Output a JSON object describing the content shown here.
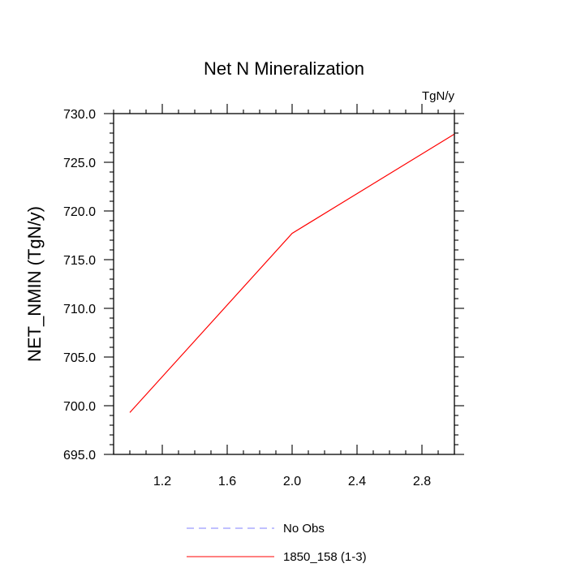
{
  "chart_data": {
    "type": "line",
    "title": "Net N Mineralization",
    "units_label": "TgN/y",
    "xlabel": "",
    "ylabel": "NET_NMIN  (TgN/y)",
    "xlim": [
      0.9,
      3.0
    ],
    "ylim": [
      695.0,
      730.0
    ],
    "x_ticks": [
      1.2,
      1.6,
      2.0,
      2.4,
      2.8
    ],
    "x_tick_labels": [
      "1.2",
      "1.6",
      "2.0",
      "2.4",
      "2.8"
    ],
    "y_ticks": [
      695,
      700,
      705,
      710,
      715,
      720,
      725,
      730
    ],
    "y_tick_labels": [
      "695.0",
      "700.0",
      "705.0",
      "710.0",
      "715.0",
      "720.0",
      "725.0",
      "730.0"
    ],
    "grid": false,
    "legend_position": "bottom",
    "series": [
      {
        "name": "1850_158 (1-3)",
        "color": "#ff0000",
        "dash": "solid",
        "x": [
          1.0,
          2.0,
          3.0
        ],
        "y": [
          699.3,
          717.7,
          727.9
        ]
      }
    ],
    "legend": [
      {
        "label": "No Obs",
        "color": "#8080ff",
        "dash": "dashed"
      },
      {
        "label": "1850_158 (1-3)",
        "color": "#ff0000",
        "dash": "solid"
      }
    ]
  }
}
